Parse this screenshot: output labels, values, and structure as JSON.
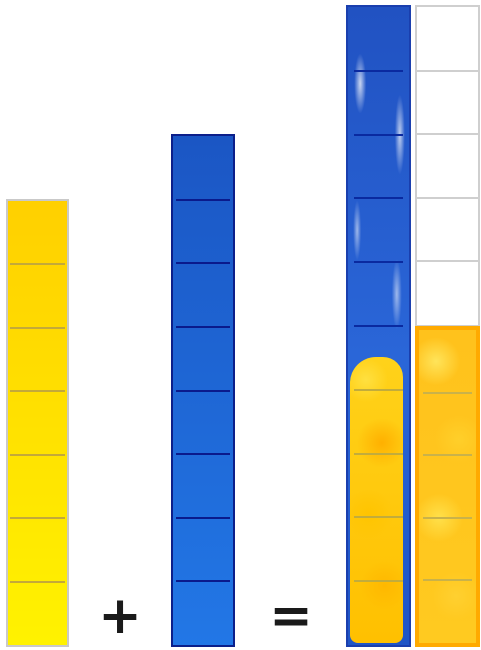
{
  "operators": {
    "plus": "+",
    "equals": "="
  },
  "bars": {
    "yellow": {
      "units": 7,
      "color": "#ffe000"
    },
    "blue": {
      "units": 8,
      "color": "#1f66d6"
    },
    "mixed": {
      "units": 10,
      "blue_units": 5,
      "yellow_units": 5
    },
    "empty": {
      "units": 5
    },
    "orange": {
      "units": 5,
      "color": "#ffc21c"
    }
  }
}
